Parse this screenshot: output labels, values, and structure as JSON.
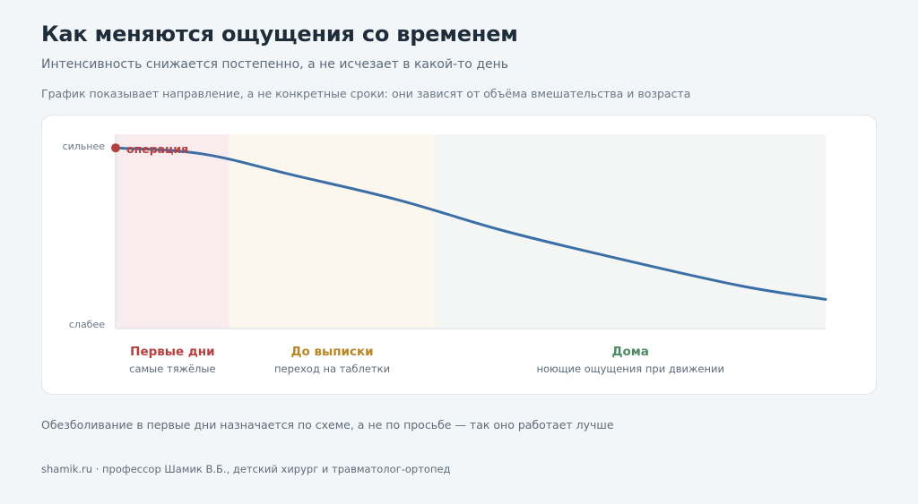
{
  "header": {
    "title": "Как меняются ощущения со временем",
    "subtitle": "Интенсивность снижается постепенно, а не исчезает в какой-то день",
    "note": "График показывает направление, а не конкретные сроки: они зависят от объёма вмешательства и возраста"
  },
  "chart_data": {
    "type": "line",
    "title": "",
    "xlabel": "",
    "ylabel": "",
    "y_axis": {
      "top_label": "сильнее",
      "bottom_label": "слабее"
    },
    "ylim": [
      0,
      1
    ],
    "xlim": [
      0,
      1
    ],
    "grid": false,
    "series": [
      {
        "color": "#3a6ea5",
        "x": [
          0.0,
          0.12,
          0.25,
          0.4,
          0.55,
          0.72,
          0.88,
          1.0
        ],
        "values": [
          0.93,
          0.9,
          0.79,
          0.66,
          0.5,
          0.35,
          0.22,
          0.15
        ]
      }
    ],
    "marker": {
      "label": "операция",
      "x": 0.0,
      "value": 0.93,
      "color": "#b5403f"
    },
    "phases": [
      {
        "title": "Первые дни",
        "caption": "самые тяжёлые",
        "start": 0.0,
        "end": 0.16,
        "color": "#b5403f",
        "fill": "#f9ecee"
      },
      {
        "title": "До выписки",
        "caption": "переход на таблетки",
        "start": 0.16,
        "end": 0.45,
        "color": "#b98626",
        "fill": "#fbf6ee"
      },
      {
        "title": "Дома",
        "caption": "ноющие ощущения при движении",
        "start": 0.45,
        "end": 1.0,
        "color": "#4e8a62",
        "fill": "#f3f6f4"
      }
    ]
  },
  "footer": {
    "note": "Обезболивание в первые дни назначается по схеме, а не по просьбе — так оно работает лучше",
    "credit": "shamik.ru · профессор Шамик В.Б., детский хирург и травматолог-ортопед"
  }
}
